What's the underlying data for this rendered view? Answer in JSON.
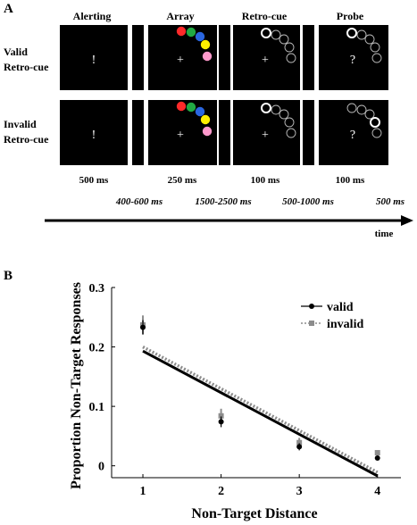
{
  "panel_a": {
    "label": "A",
    "column_headers": [
      "Alerting",
      "Array",
      "Retro-cue",
      "Probe"
    ],
    "rows": [
      {
        "label_lines": [
          "Valid",
          "Retro-cue"
        ],
        "screens": [
          "!",
          "+",
          "+",
          "?"
        ],
        "highlight_retrocue_index": 0,
        "highlight_probe_index": 0
      },
      {
        "label_lines": [
          "Invalid",
          "Retro-cue"
        ],
        "screens": [
          "!",
          "+",
          "+",
          "?"
        ],
        "highlight_retrocue_index": 0,
        "highlight_probe_index": 3
      }
    ],
    "array_colors": [
      "#ff2a2a",
      "#22aa44",
      "#2a66e0",
      "#ffee00",
      "#ff99cc"
    ],
    "durations": [
      "500 ms",
      "250 ms",
      "100 ms",
      "100 ms"
    ],
    "delays": [
      "400-600 ms",
      "1500-2500 ms",
      "500-1000 ms",
      "500 ms"
    ],
    "time_label": "time"
  },
  "panel_b": {
    "label": "B",
    "chart_data": {
      "type": "scatter",
      "xlabel": "Non-Target Distance",
      "ylabel": "Proportion Non-Target Responses",
      "xlim": [
        0.6,
        4.3
      ],
      "ylim": [
        -0.02,
        0.3
      ],
      "xticks": [
        1,
        2,
        3,
        4
      ],
      "yticks": [
        0,
        0.1,
        0.2,
        0.3
      ],
      "ytick_labels": [
        "0",
        "0.1",
        "0.2",
        "0.3"
      ],
      "legend_position": "top-right",
      "series": [
        {
          "name": "valid",
          "color": "#000000",
          "x": [
            1,
            2,
            3,
            4
          ],
          "y": [
            0.233,
            0.074,
            0.032,
            0.013
          ],
          "err": [
            0.012,
            0.009,
            0.006,
            0.003
          ],
          "fit": [
            [
              1,
              0.193
            ],
            [
              4,
              -0.017
            ]
          ]
        },
        {
          "name": "invalid",
          "color": "#8c8c8c",
          "x": [
            1,
            2,
            3,
            4
          ],
          "y": [
            0.237,
            0.084,
            0.039,
            0.022
          ],
          "err": [
            0.016,
            0.012,
            0.008,
            0.004
          ],
          "fit": [
            [
              1,
              0.2
            ],
            [
              4,
              -0.011
            ]
          ]
        }
      ]
    }
  }
}
